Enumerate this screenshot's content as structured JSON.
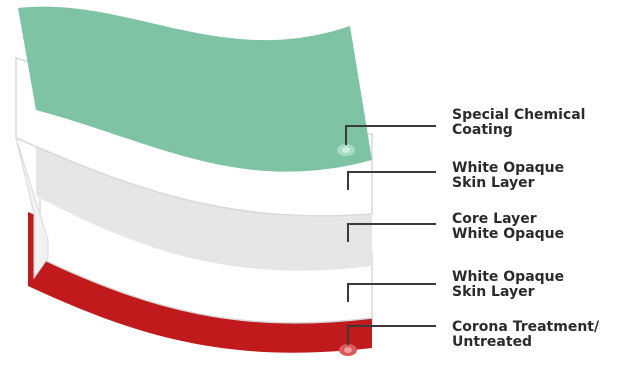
{
  "diagram": {
    "layers": [
      {
        "id": "coating",
        "name_line1": "Special Chemical",
        "name_line2": "Coating",
        "color": "#7ec4a4"
      },
      {
        "id": "skin-top",
        "name_line1": "White Opaque",
        "name_line2": "Skin Layer",
        "color": "#ffffff"
      },
      {
        "id": "core",
        "name_line1": "Core Layer",
        "name_line2": "White Opaque",
        "color": "#e6e6e6"
      },
      {
        "id": "skin-bottom",
        "name_line1": "White Opaque",
        "name_line2": "Skin Layer",
        "color": "#ffffff"
      },
      {
        "id": "corona",
        "name_line1": "Corona Treatment/",
        "name_line2": "Untreated",
        "color": "#c11a1d"
      }
    ],
    "leader_color": "#3a3a3a",
    "edge_color": "#d9d9d9"
  }
}
